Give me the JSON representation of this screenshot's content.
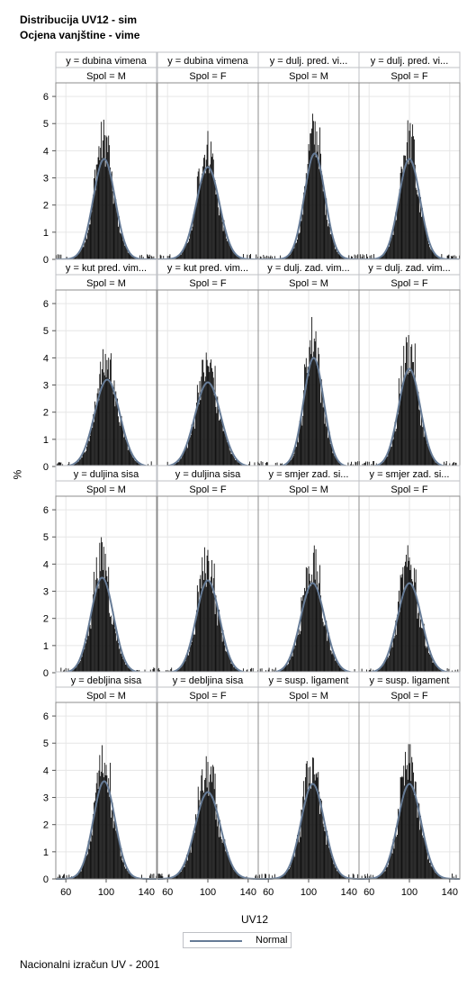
{
  "titles": {
    "line1": "Distribucija UV12 - sim",
    "line2": "Ocjena vanjštine - vime"
  },
  "footer": "Nacionalni izračun UV - 2001",
  "colors": {
    "bar": "#111111",
    "curve": "#667b96",
    "grid": "#e6e6e6",
    "header_fill": "#ffffff",
    "header_border": "#bfc1c6",
    "panel_border": "#8c8c8c"
  },
  "chart_data": {
    "type": "bar",
    "layout": "4x4 panel histogram with fitted normal curve",
    "xlabel": "UV12",
    "ylabel": "%",
    "x_ticks": [
      "60",
      "100",
      "140"
    ],
    "y_ticks": [
      "0",
      "1",
      "2",
      "3",
      "4",
      "5",
      "6"
    ],
    "xlim": [
      50,
      150
    ],
    "ylim": [
      0,
      6.5
    ],
    "grid": true,
    "legend": {
      "position": "bottom-center",
      "entries": [
        "Normal"
      ]
    },
    "panels": [
      {
        "header1": "y = dubina vimena",
        "header2": "Spol = M",
        "mean": 98,
        "sd": 10.8,
        "peak": 3.7
      },
      {
        "header1": "y = dubina vimena",
        "header2": "Spol = F",
        "mean": 100,
        "sd": 11.5,
        "peak": 3.4
      },
      {
        "header1": "y = dulj. pred. vi...",
        "header2": "Spol = M",
        "mean": 106,
        "sd": 10.2,
        "peak": 3.9
      },
      {
        "header1": "y = dulj. pred. vi...",
        "header2": "Spol = F",
        "mean": 100,
        "sd": 10.5,
        "peak": 3.7
      },
      {
        "header1": "y = kut pred. vim...",
        "header2": "Spol = M",
        "mean": 101,
        "sd": 12.5,
        "peak": 3.2
      },
      {
        "header1": "y = kut pred. vim...",
        "header2": "Spol = F",
        "mean": 100,
        "sd": 12.8,
        "peak": 3.1
      },
      {
        "header1": "y = dulj. zad. vim...",
        "header2": "Spol = M",
        "mean": 105,
        "sd": 10.0,
        "peak": 4.0
      },
      {
        "header1": "y = dulj. zad. vim...",
        "header2": "Spol = F",
        "mean": 100,
        "sd": 10.8,
        "peak": 3.6
      },
      {
        "header1": "y = duljina sisa",
        "header2": "Spol = M",
        "mean": 96,
        "sd": 11.2,
        "peak": 3.5
      },
      {
        "header1": "y = duljina sisa",
        "header2": "Spol = F",
        "mean": 100,
        "sd": 11.5,
        "peak": 3.4
      },
      {
        "header1": "y = smjer zad. si...",
        "header2": "Spol = M",
        "mean": 104,
        "sd": 12.0,
        "peak": 3.3
      },
      {
        "header1": "y = smjer zad. si...",
        "header2": "Spol = F",
        "mean": 100,
        "sd": 12.0,
        "peak": 3.3
      },
      {
        "header1": "y = debljina sisa",
        "header2": "Spol = M",
        "mean": 98,
        "sd": 10.8,
        "peak": 3.6
      },
      {
        "header1": "y = debljina sisa",
        "header2": "Spol = F",
        "mean": 100,
        "sd": 12.5,
        "peak": 3.2
      },
      {
        "header1": "y = susp. ligament",
        "header2": "Spol = M",
        "mean": 104,
        "sd": 11.5,
        "peak": 3.5
      },
      {
        "header1": "y = susp. ligament",
        "header2": "Spol = F",
        "mean": 100,
        "sd": 11.5,
        "peak": 3.5
      }
    ]
  }
}
